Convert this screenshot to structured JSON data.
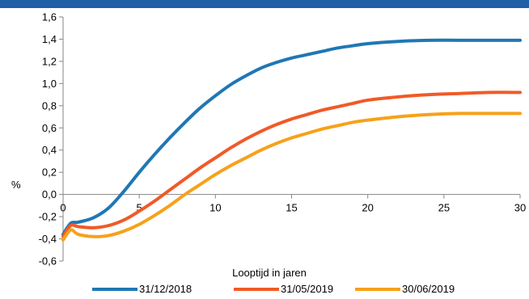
{
  "header": {
    "title": ""
  },
  "chart_data": {
    "type": "line",
    "title": "",
    "xlabel": "Looptijd in jaren",
    "ylabel": "%",
    "xlim": [
      0,
      30
    ],
    "ylim": [
      -0.6,
      1.6
    ],
    "xticks": [
      0,
      5,
      10,
      15,
      20,
      25,
      30
    ],
    "xtick_labels": [
      "0",
      "5",
      "10",
      "15",
      "20",
      "25",
      "30"
    ],
    "yticks": [
      -0.6,
      -0.4,
      -0.2,
      0.0,
      0.2,
      0.4,
      0.6,
      0.8,
      1.0,
      1.2,
      1.4,
      1.6
    ],
    "ytick_labels": [
      "-0,6",
      "-0,4",
      "-0,2",
      "0,0",
      "0,2",
      "0,4",
      "0,6",
      "0,8",
      "1,0",
      "1,2",
      "1,4",
      "1,6"
    ],
    "grid": false,
    "legend_position": "bottom",
    "series": [
      {
        "name": "31/12/2018",
        "color": "#1f77b4",
        "points": [
          [
            0,
            -0.36
          ],
          [
            0.5,
            -0.26
          ],
          [
            1,
            -0.25
          ],
          [
            2,
            -0.21
          ],
          [
            3,
            -0.12
          ],
          [
            4,
            0.03
          ],
          [
            5,
            0.2
          ],
          [
            6,
            0.36
          ],
          [
            7,
            0.51
          ],
          [
            8,
            0.65
          ],
          [
            9,
            0.78
          ],
          [
            10,
            0.89
          ],
          [
            11,
            0.99
          ],
          [
            12,
            1.07
          ],
          [
            13,
            1.14
          ],
          [
            14,
            1.19
          ],
          [
            15,
            1.23
          ],
          [
            16,
            1.26
          ],
          [
            17,
            1.29
          ],
          [
            18,
            1.32
          ],
          [
            19,
            1.34
          ],
          [
            20,
            1.36
          ],
          [
            22,
            1.38
          ],
          [
            24,
            1.39
          ],
          [
            26,
            1.39
          ],
          [
            28,
            1.39
          ],
          [
            30,
            1.39
          ]
        ]
      },
      {
        "name": "31/05/2019",
        "color": "#f05a28",
        "points": [
          [
            0,
            -0.38
          ],
          [
            0.5,
            -0.28
          ],
          [
            1,
            -0.29
          ],
          [
            2,
            -0.3
          ],
          [
            3,
            -0.28
          ],
          [
            4,
            -0.23
          ],
          [
            5,
            -0.15
          ],
          [
            6,
            -0.06
          ],
          [
            7,
            0.04
          ],
          [
            8,
            0.14
          ],
          [
            9,
            0.24
          ],
          [
            10,
            0.33
          ],
          [
            11,
            0.42
          ],
          [
            12,
            0.5
          ],
          [
            13,
            0.57
          ],
          [
            14,
            0.63
          ],
          [
            15,
            0.68
          ],
          [
            16,
            0.72
          ],
          [
            17,
            0.76
          ],
          [
            18,
            0.79
          ],
          [
            19,
            0.82
          ],
          [
            20,
            0.85
          ],
          [
            22,
            0.88
          ],
          [
            24,
            0.9
          ],
          [
            26,
            0.91
          ],
          [
            28,
            0.92
          ],
          [
            30,
            0.92
          ]
        ]
      },
      {
        "name": "30/06/2019",
        "color": "#f7a11a",
        "points": [
          [
            0,
            -0.41
          ],
          [
            0.5,
            -0.32
          ],
          [
            1,
            -0.36
          ],
          [
            2,
            -0.38
          ],
          [
            3,
            -0.37
          ],
          [
            4,
            -0.33
          ],
          [
            5,
            -0.27
          ],
          [
            6,
            -0.19
          ],
          [
            7,
            -0.1
          ],
          [
            8,
            0.0
          ],
          [
            9,
            0.09
          ],
          [
            10,
            0.18
          ],
          [
            11,
            0.26
          ],
          [
            12,
            0.33
          ],
          [
            13,
            0.4
          ],
          [
            14,
            0.46
          ],
          [
            15,
            0.51
          ],
          [
            16,
            0.55
          ],
          [
            17,
            0.59
          ],
          [
            18,
            0.62
          ],
          [
            19,
            0.65
          ],
          [
            20,
            0.67
          ],
          [
            22,
            0.7
          ],
          [
            24,
            0.72
          ],
          [
            26,
            0.73
          ],
          [
            28,
            0.73
          ],
          [
            30,
            0.73
          ]
        ]
      }
    ]
  }
}
